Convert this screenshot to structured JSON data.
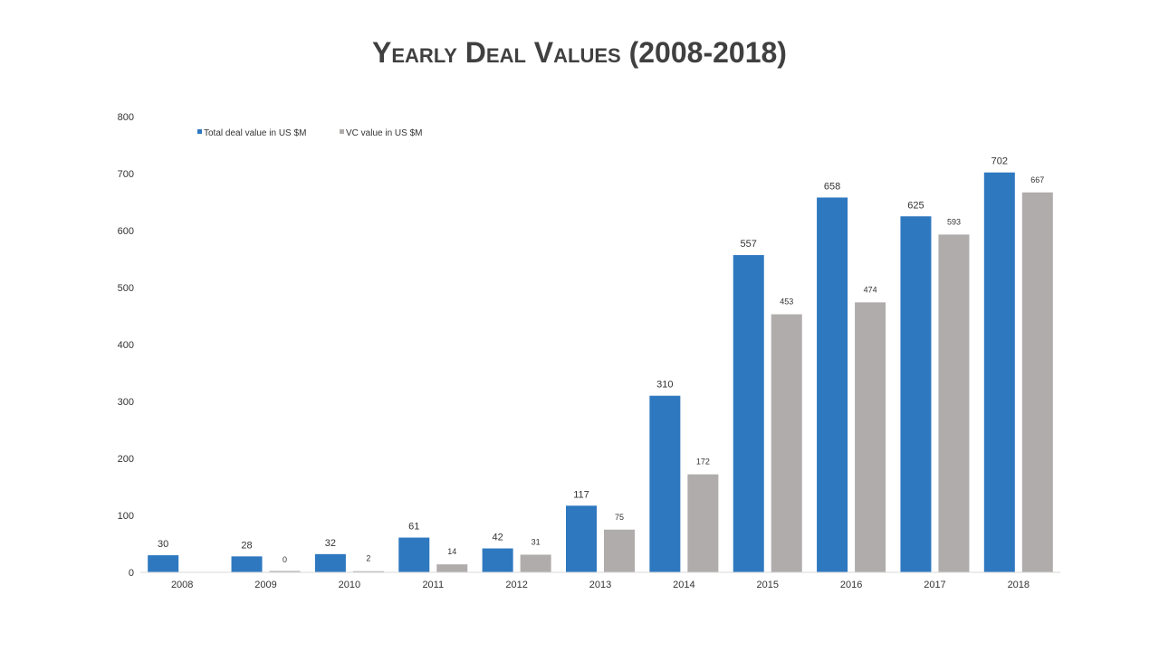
{
  "chart_data": {
    "type": "bar",
    "title": "Yearly Deal Values (2008-2018)",
    "xlabel": "",
    "ylabel": "",
    "ylim": [
      0,
      800
    ],
    "yticks": [
      0,
      100,
      200,
      300,
      400,
      500,
      600,
      700,
      800
    ],
    "legend_position": "top-left",
    "grid": false,
    "categories": [
      "2008",
      "2009",
      "2010",
      "2011",
      "2012",
      "2013",
      "2014",
      "2015",
      "2016",
      "2017",
      "2018"
    ],
    "series": [
      {
        "name": "Total deal value in US $M",
        "color": "#2e78c0",
        "values": [
          30,
          28,
          32,
          61,
          42,
          117,
          310,
          557,
          658,
          625,
          702
        ],
        "labels": [
          "30",
          "28",
          "32",
          "61",
          "42",
          "117",
          "310",
          "557",
          "658",
          "625",
          "702"
        ]
      },
      {
        "name": "VC value in US $M",
        "color": "#b0acab",
        "values": [
          null,
          0,
          2,
          14,
          31,
          75,
          172,
          453,
          474,
          593,
          667
        ],
        "labels": [
          "",
          "0",
          "2",
          "14",
          "31",
          "75",
          "172",
          "453",
          "474",
          "593",
          "667"
        ]
      }
    ]
  }
}
